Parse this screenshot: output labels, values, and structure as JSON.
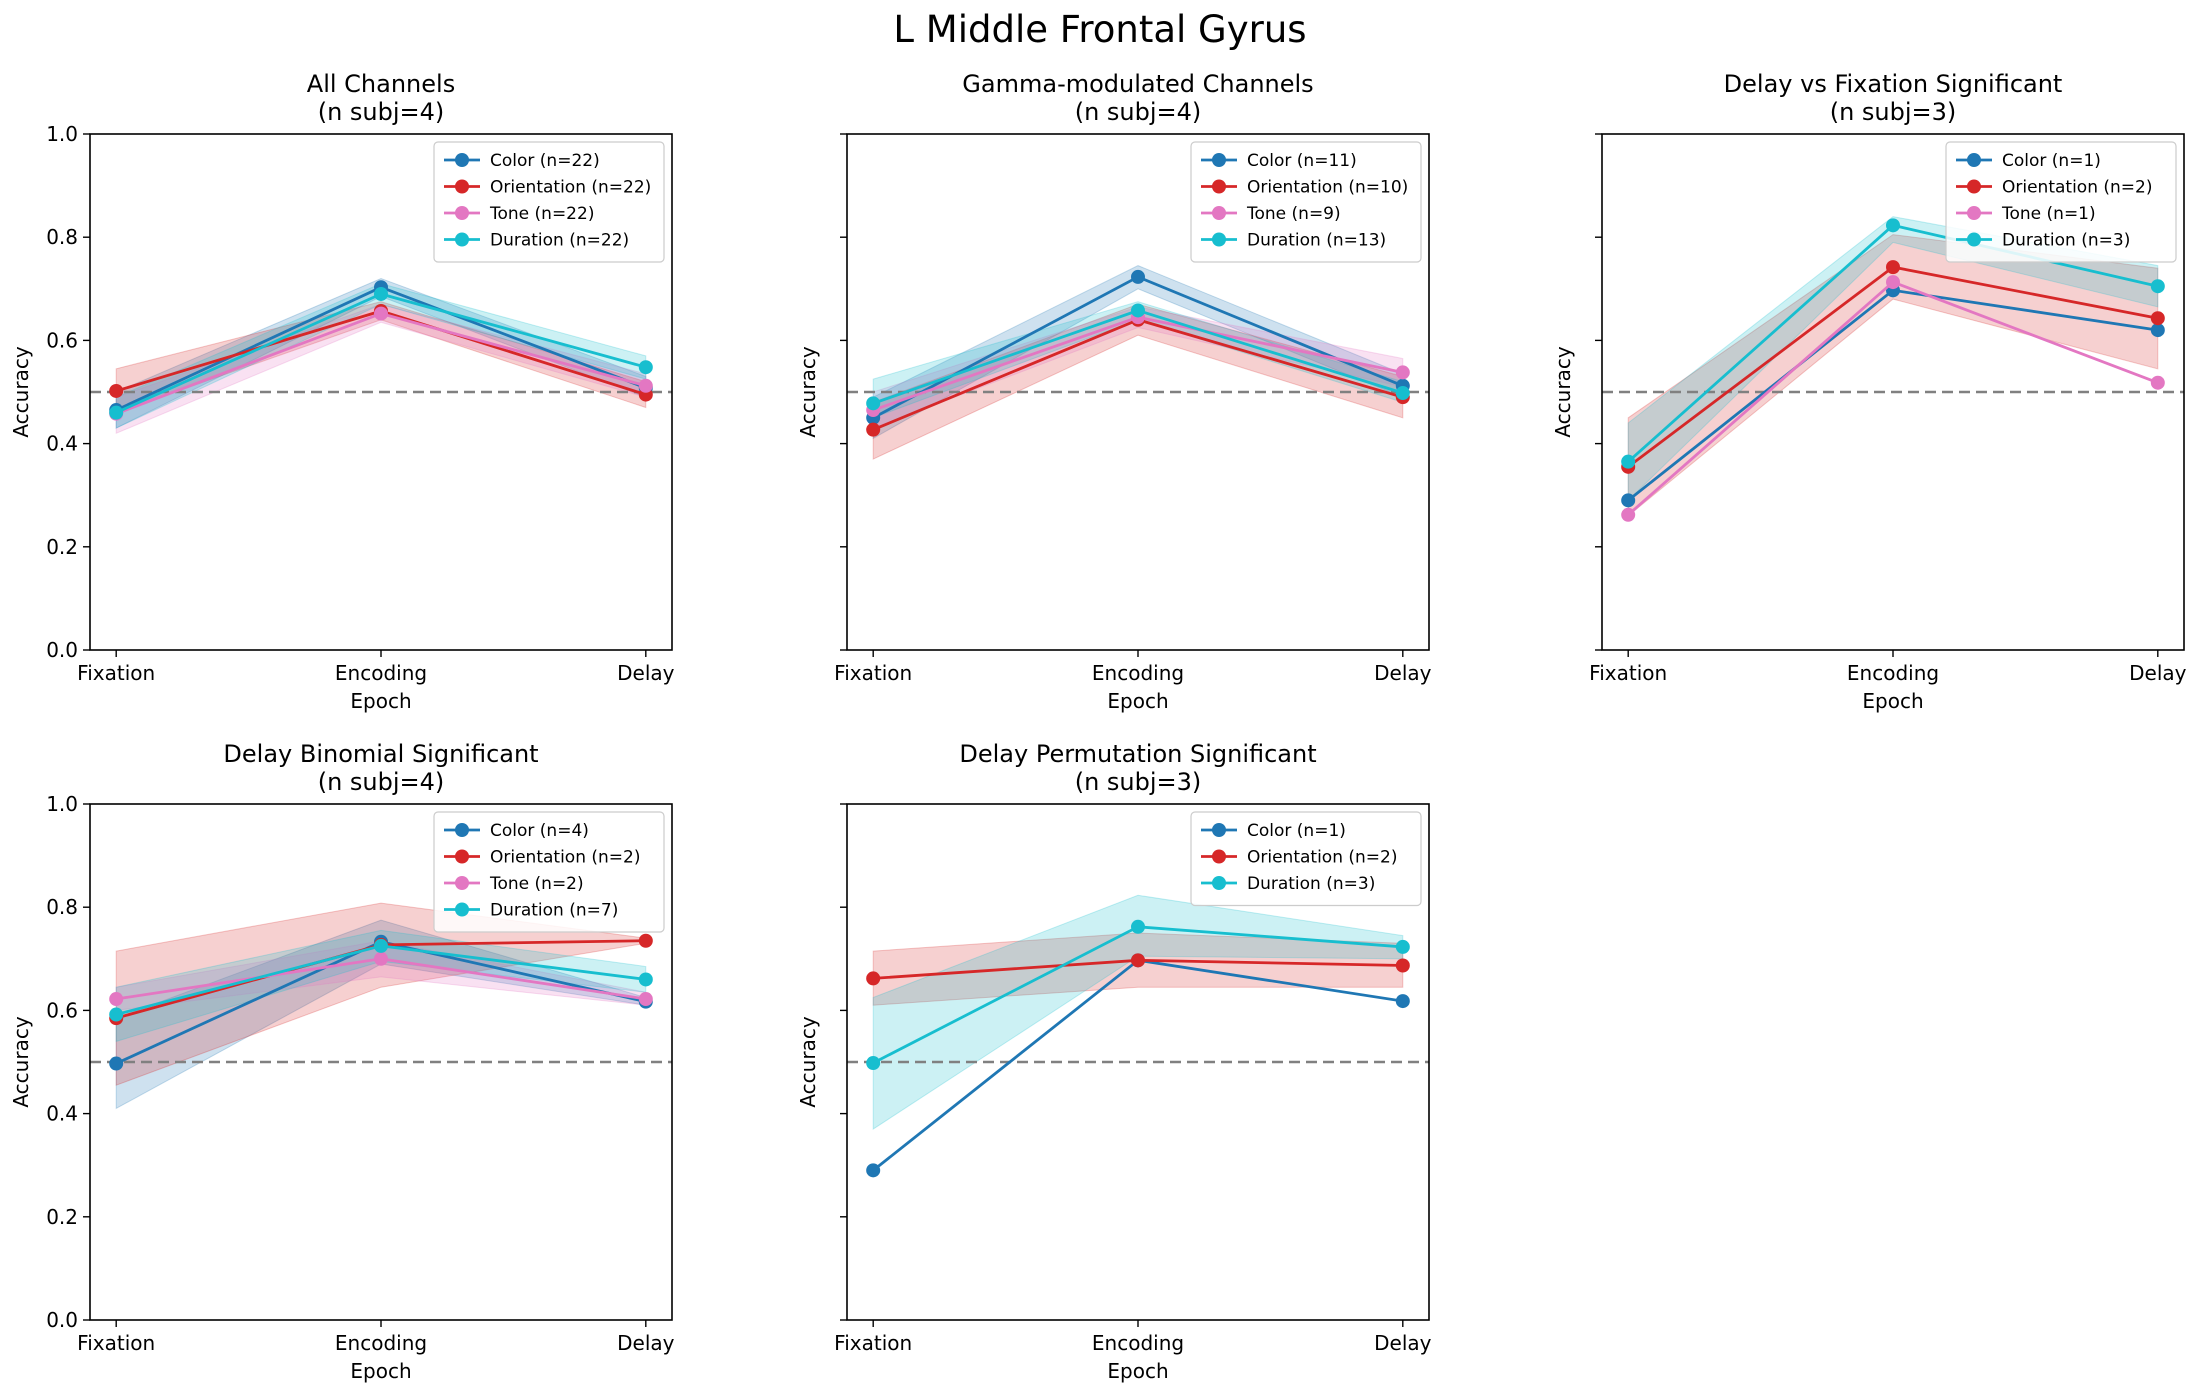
{
  "figure": {
    "title": "L Middle Frontal Gyrus"
  },
  "colors": {
    "Color": "#1f77b4",
    "Orientation": "#d62728",
    "Tone": "#e377c2",
    "Duration": "#17becf",
    "chance_line": "#808080"
  },
  "chart_data": [
    {
      "type": "line",
      "title": "All Channels\n(n subj=4)",
      "xlabel": "Epoch",
      "ylabel": "Accuracy",
      "categories": [
        "Fixation",
        "Encoding",
        "Delay"
      ],
      "ylim": [
        0,
        1.0
      ],
      "yticks": [
        "0.0",
        "0.2",
        "0.4",
        "0.6",
        "0.8",
        "1.0"
      ],
      "chance_level": 0.5,
      "show_ytick_labels": true,
      "legend_position": "top-right",
      "series": [
        {
          "name": "Color (n=22)",
          "key": "Color",
          "values": [
            0.465,
            0.703,
            0.508
          ],
          "lower": [
            0.43,
            0.685,
            0.49
          ],
          "upper": [
            0.5,
            0.72,
            0.53
          ]
        },
        {
          "name": "Orientation (n=22)",
          "key": "Orientation",
          "values": [
            0.502,
            0.657,
            0.495
          ],
          "lower": [
            0.46,
            0.64,
            0.47
          ],
          "upper": [
            0.545,
            0.675,
            0.52
          ]
        },
        {
          "name": "Tone (n=22)",
          "key": "Tone",
          "values": [
            0.458,
            0.652,
            0.512
          ],
          "lower": [
            0.42,
            0.635,
            0.49
          ],
          "upper": [
            0.49,
            0.67,
            0.535
          ]
        },
        {
          "name": "Duration (n=22)",
          "key": "Duration",
          "values": [
            0.46,
            0.69,
            0.548
          ],
          "lower": [
            0.43,
            0.67,
            0.525
          ],
          "upper": [
            0.49,
            0.71,
            0.57
          ]
        }
      ]
    },
    {
      "type": "line",
      "title": "Gamma-modulated Channels\n(n subj=4)",
      "xlabel": "Epoch",
      "ylabel": "Accuracy",
      "categories": [
        "Fixation",
        "Encoding",
        "Delay"
      ],
      "ylim": [
        0,
        1.0
      ],
      "yticks": [
        "0.0",
        "0.2",
        "0.4",
        "0.6",
        "0.8",
        "1.0"
      ],
      "chance_level": 0.5,
      "show_ytick_labels": false,
      "legend_position": "top-right",
      "series": [
        {
          "name": "Color (n=11)",
          "key": "Color",
          "values": [
            0.45,
            0.723,
            0.512
          ],
          "lower": [
            0.41,
            0.7,
            0.49
          ],
          "upper": [
            0.49,
            0.745,
            0.535
          ]
        },
        {
          "name": "Orientation (n=10)",
          "key": "Orientation",
          "values": [
            0.427,
            0.64,
            0.49
          ],
          "lower": [
            0.37,
            0.61,
            0.45
          ],
          "upper": [
            0.48,
            0.67,
            0.53
          ]
        },
        {
          "name": "Tone (n=9)",
          "key": "Tone",
          "values": [
            0.465,
            0.645,
            0.538
          ],
          "lower": [
            0.43,
            0.625,
            0.51
          ],
          "upper": [
            0.5,
            0.665,
            0.565
          ]
        },
        {
          "name": "Duration (n=13)",
          "key": "Duration",
          "values": [
            0.478,
            0.658,
            0.498
          ],
          "lower": [
            0.45,
            0.64,
            0.48
          ],
          "upper": [
            0.525,
            0.675,
            0.52
          ]
        }
      ]
    },
    {
      "type": "line",
      "title": "Delay vs Fixation Significant\n(n subj=3)",
      "xlabel": "Epoch",
      "ylabel": "Accuracy",
      "categories": [
        "Fixation",
        "Encoding",
        "Delay"
      ],
      "ylim": [
        0,
        1.0
      ],
      "yticks": [
        "0.0",
        "0.2",
        "0.4",
        "0.6",
        "0.8",
        "1.0"
      ],
      "chance_level": 0.5,
      "show_ytick_labels": false,
      "legend_position": "top-right",
      "series": [
        {
          "name": "Color (n=1)",
          "key": "Color",
          "values": [
            0.29,
            0.697,
            0.62
          ]
        },
        {
          "name": "Orientation (n=2)",
          "key": "Orientation",
          "values": [
            0.355,
            0.742,
            0.643
          ],
          "lower": [
            0.26,
            0.68,
            0.545
          ],
          "upper": [
            0.45,
            0.805,
            0.74
          ]
        },
        {
          "name": "Tone (n=1)",
          "key": "Tone",
          "values": [
            0.262,
            0.713,
            0.518
          ]
        },
        {
          "name": "Duration (n=3)",
          "key": "Duration",
          "values": [
            0.365,
            0.823,
            0.705
          ],
          "lower": [
            0.29,
            0.79,
            0.665
          ],
          "upper": [
            0.44,
            0.84,
            0.745
          ]
        }
      ]
    },
    {
      "type": "line",
      "title": "Delay Binomial Significant\n(n subj=4)",
      "xlabel": "Epoch",
      "ylabel": "Accuracy",
      "categories": [
        "Fixation",
        "Encoding",
        "Delay"
      ],
      "ylim": [
        0,
        1.0
      ],
      "yticks": [
        "0.0",
        "0.2",
        "0.4",
        "0.6",
        "0.8",
        "1.0"
      ],
      "chance_level": 0.5,
      "show_ytick_labels": true,
      "legend_position": "top-right",
      "series": [
        {
          "name": "Color (n=4)",
          "key": "Color",
          "values": [
            0.497,
            0.733,
            0.617
          ],
          "lower": [
            0.41,
            0.69,
            0.61
          ],
          "upper": [
            0.585,
            0.775,
            0.625
          ]
        },
        {
          "name": "Orientation (n=2)",
          "key": "Orientation",
          "values": [
            0.585,
            0.727,
            0.735
          ],
          "lower": [
            0.455,
            0.645,
            0.73
          ],
          "upper": [
            0.715,
            0.808,
            0.74
          ]
        },
        {
          "name": "Tone (n=2)",
          "key": "Tone",
          "values": [
            0.622,
            0.7,
            0.622
          ],
          "lower": [
            0.6,
            0.665,
            0.61
          ],
          "upper": [
            0.645,
            0.735,
            0.635
          ]
        },
        {
          "name": "Duration (n=7)",
          "key": "Duration",
          "values": [
            0.592,
            0.725,
            0.66
          ],
          "lower": [
            0.54,
            0.695,
            0.635
          ],
          "upper": [
            0.645,
            0.755,
            0.685
          ]
        }
      ]
    },
    {
      "type": "line",
      "title": "Delay Permutation Significant\n(n subj=3)",
      "xlabel": "Epoch",
      "ylabel": "Accuracy",
      "categories": [
        "Fixation",
        "Encoding",
        "Delay"
      ],
      "ylim": [
        0,
        1.0
      ],
      "yticks": [
        "0.0",
        "0.2",
        "0.4",
        "0.6",
        "0.8",
        "1.0"
      ],
      "chance_level": 0.5,
      "show_ytick_labels": false,
      "legend_position": "top-right",
      "series": [
        {
          "name": "Color (n=1)",
          "key": "Color",
          "values": [
            0.29,
            0.697,
            0.618
          ]
        },
        {
          "name": "Orientation (n=2)",
          "key": "Orientation",
          "values": [
            0.662,
            0.697,
            0.687
          ],
          "lower": [
            0.61,
            0.645,
            0.645
          ],
          "upper": [
            0.715,
            0.75,
            0.73
          ]
        },
        {
          "name": "Duration (n=3)",
          "key": "Duration",
          "values": [
            0.498,
            0.762,
            0.723
          ],
          "lower": [
            0.37,
            0.705,
            0.7
          ],
          "upper": [
            0.625,
            0.823,
            0.745
          ]
        }
      ]
    }
  ]
}
